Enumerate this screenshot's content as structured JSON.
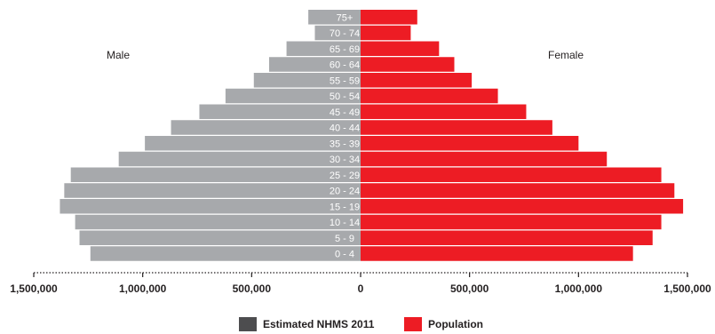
{
  "chart_data": {
    "type": "bar",
    "orientation": "horizontal-diverging",
    "title": "",
    "side_labels": {
      "left": "Male",
      "right": "Female"
    },
    "categories": [
      "75+",
      "70 - 74",
      "65 - 69",
      "60 - 64",
      "55 - 59",
      "50 - 54",
      "45 - 49",
      "40 - 44",
      "35 - 39",
      "30 - 34",
      "25 - 29",
      "20 - 24",
      "15 - 19",
      "10 - 14",
      "5 - 9",
      "0 - 4"
    ],
    "series": [
      {
        "name": "Estimated NHMS 2011",
        "side": "left",
        "color": "#a7a9ac",
        "values": [
          240000,
          210000,
          340000,
          420000,
          490000,
          620000,
          740000,
          870000,
          990000,
          1110000,
          1330000,
          1360000,
          1380000,
          1310000,
          1290000,
          1240000
        ]
      },
      {
        "name": "Population",
        "side": "right",
        "color": "#ed1c24",
        "values": [
          260000,
          230000,
          360000,
          430000,
          510000,
          630000,
          760000,
          880000,
          1000000,
          1130000,
          1380000,
          1440000,
          1480000,
          1380000,
          1340000,
          1250000
        ]
      }
    ],
    "xaxis": {
      "ticks": [
        -1500000,
        -1000000,
        -500000,
        0,
        500000,
        1000000,
        1500000
      ],
      "tick_labels": [
        "1,500,000",
        "1,000,000",
        "500,000",
        "0",
        "500,000",
        "1,000,000",
        "1,500,000"
      ],
      "range": [
        -1500000,
        1500000
      ]
    },
    "legend": {
      "placement": "bottom",
      "entries": [
        {
          "label": "Estimated NHMS 2011",
          "color": "#4d4d4f"
        },
        {
          "label": "Population",
          "color": "#ed1c24"
        }
      ]
    },
    "grid": false
  }
}
